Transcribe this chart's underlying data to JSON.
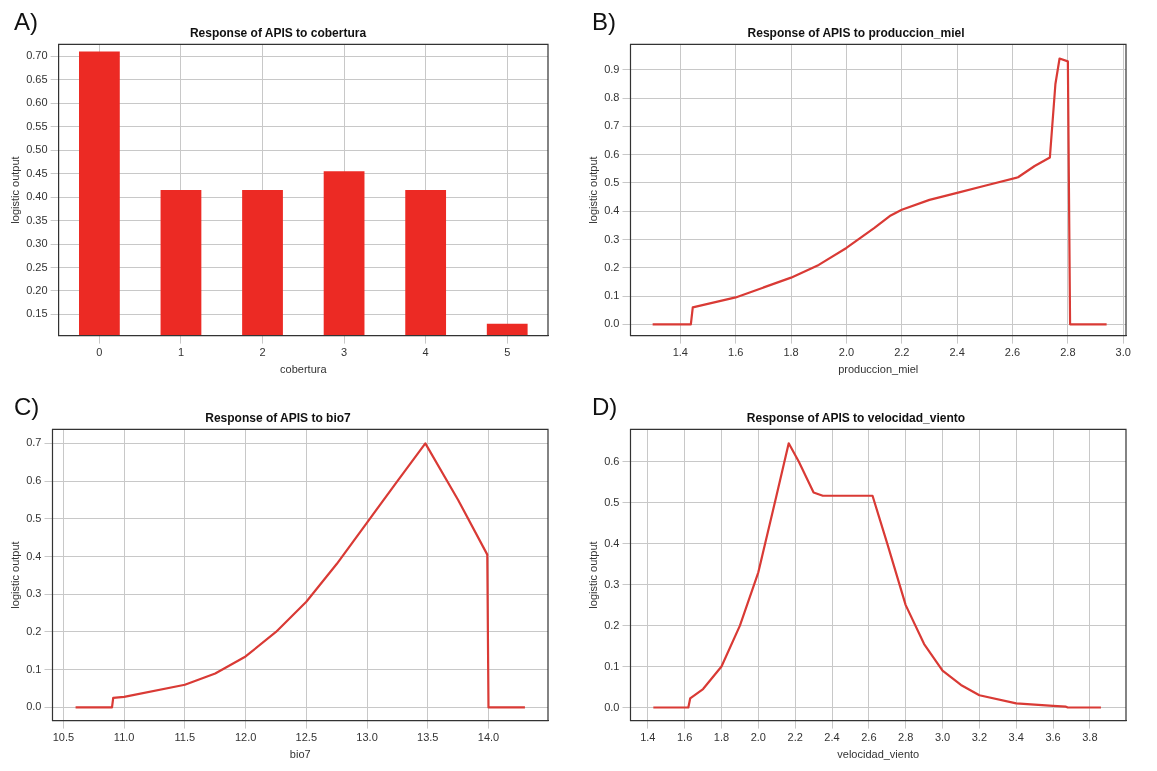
{
  "chart_data": [
    {
      "type": "bar",
      "title": "Response of APIS to cobertura",
      "xlabel": "cobertura",
      "ylabel": "logistic output",
      "annotations": [
        "A)"
      ],
      "categories": [
        "0",
        "1",
        "2",
        "3",
        "4",
        "5"
      ],
      "values": [
        0.71,
        0.415,
        0.415,
        0.455,
        0.415,
        0.13
      ],
      "color": "#ec2a24",
      "ylim": [
        0.105,
        0.725
      ],
      "yticks": [
        {
          "value": 0.15,
          "label": "0.15"
        },
        {
          "value": 0.2,
          "label": "0.20"
        },
        {
          "value": 0.25,
          "label": "0.25"
        },
        {
          "value": 0.3,
          "label": "0.30"
        },
        {
          "value": 0.35,
          "label": "0.35"
        },
        {
          "value": 0.4,
          "label": "0.40"
        },
        {
          "value": 0.45,
          "label": "0.45"
        },
        {
          "value": 0.5,
          "label": "0.50"
        },
        {
          "value": 0.55,
          "label": "0.55"
        },
        {
          "value": 0.6,
          "label": "0.60"
        },
        {
          "value": 0.65,
          "label": "0.65"
        },
        {
          "value": 0.7,
          "label": "0.70"
        }
      ],
      "grid": true
    },
    {
      "type": "line",
      "title": "Response of APIS to produccion_miel",
      "xlabel": "produccion_miel",
      "ylabel": "logistic output",
      "annotations": [
        "B)"
      ],
      "color": "#d93a35",
      "marker": "none",
      "grid": true,
      "x": [
        1.3,
        1.438,
        1.445,
        1.6,
        1.8,
        1.9,
        2.0,
        2.1,
        2.16,
        2.2,
        2.3,
        2.4,
        2.5,
        2.62,
        2.68,
        2.735,
        2.755,
        2.77,
        2.8,
        2.808,
        2.94
      ],
      "values": [
        0,
        0,
        0.06,
        0.095,
        0.165,
        0.21,
        0.27,
        0.34,
        0.385,
        0.405,
        0.44,
        0.465,
        0.49,
        0.52,
        0.56,
        0.59,
        0.85,
        0.94,
        0.93,
        0,
        0
      ],
      "xlim": [
        1.22,
        3.01
      ],
      "xticks": [
        1.4,
        1.6,
        1.8,
        {
          "value": 2,
          "label": "2.0"
        },
        2.2,
        2.4,
        2.6,
        2.8,
        {
          "value": 3,
          "label": "3.0"
        }
      ],
      "ylim": [
        -0.04,
        0.99
      ],
      "yticks": [
        {
          "value": 0,
          "label": "0.0"
        },
        0.1,
        0.2,
        0.3,
        0.4,
        0.5,
        0.6,
        0.7,
        0.8,
        0.9
      ]
    },
    {
      "type": "line",
      "title": "Response of APIS to bio7",
      "xlabel": "bio7",
      "ylabel": "logistic output",
      "annotations": [
        "C)"
      ],
      "color": "#d93a35",
      "marker": "none",
      "grid": true,
      "x": [
        10.6,
        10.9,
        10.91,
        11.0,
        11.5,
        11.75,
        12.0,
        12.25,
        12.5,
        12.75,
        13.0,
        13.25,
        13.48,
        13.75,
        13.99,
        14.0,
        14.3
      ],
      "values": [
        0,
        0,
        0.025,
        0.028,
        0.06,
        0.09,
        0.135,
        0.2,
        0.28,
        0.38,
        0.49,
        0.6,
        0.7,
        0.55,
        0.405,
        0,
        0
      ],
      "xlim": [
        10.41,
        14.49
      ],
      "xticks": [
        10.5,
        {
          "value": 11,
          "label": "11.0"
        },
        11.5,
        {
          "value": 12,
          "label": "12.0"
        },
        12.5,
        {
          "value": 13,
          "label": "13.0"
        },
        13.5,
        {
          "value": 14,
          "label": "14.0"
        }
      ],
      "ylim": [
        -0.035,
        0.737
      ],
      "yticks": [
        {
          "value": 0,
          "label": "0.0"
        },
        0.1,
        0.2,
        0.3,
        0.4,
        0.5,
        0.6,
        0.7
      ]
    },
    {
      "type": "line",
      "title": "Response of APIS to velocidad_viento",
      "xlabel": "velocidad_viento",
      "ylabel": "logistic output",
      "annotations": [
        "D)"
      ],
      "color": "#d93a35",
      "marker": "none",
      "grid": true,
      "x": [
        1.43,
        1.62,
        1.63,
        1.7,
        1.8,
        1.9,
        2.0,
        2.1,
        2.165,
        2.22,
        2.3,
        2.35,
        2.62,
        2.7,
        2.8,
        2.9,
        3.0,
        3.1,
        3.2,
        3.4,
        3.6,
        3.67,
        3.68,
        3.86
      ],
      "values": [
        0,
        0,
        0.022,
        0.045,
        0.1,
        0.2,
        0.33,
        0.52,
        0.645,
        0.6,
        0.525,
        0.517,
        0.517,
        0.4,
        0.25,
        0.155,
        0.09,
        0.055,
        0.03,
        0.01,
        0.004,
        0.002,
        0,
        0
      ],
      "xlim": [
        1.306,
        3.996
      ],
      "xticks": [
        1.4,
        1.6,
        1.8,
        {
          "value": 2,
          "label": "2.0"
        },
        2.2,
        2.4,
        2.6,
        2.8,
        {
          "value": 3,
          "label": "3.0"
        },
        3.2,
        3.4,
        3.6,
        3.8
      ],
      "ylim": [
        -0.032,
        0.679
      ],
      "yticks": [
        {
          "value": 0,
          "label": "0.0"
        },
        0.1,
        0.2,
        0.3,
        0.4,
        0.5,
        0.6
      ]
    }
  ]
}
